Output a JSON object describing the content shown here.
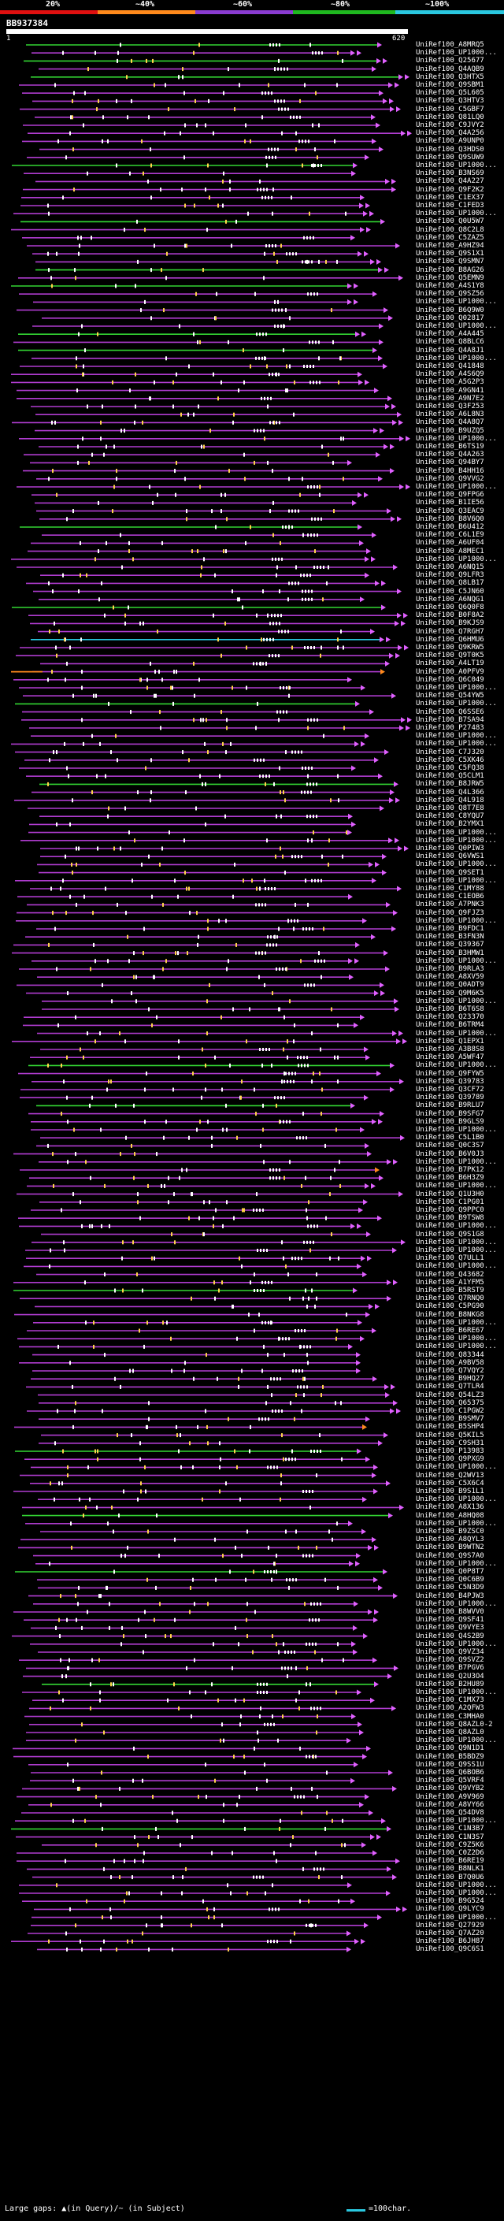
{
  "scale": {
    "labels": [
      "20%",
      "~40%",
      "~60%",
      "~80%",
      "~100%"
    ],
    "colors": [
      "#e01010",
      "#ff8a1c",
      "#8a3bd1",
      "#1fb81f",
      "#2ac8e0"
    ]
  },
  "query": {
    "id": "BB937384",
    "start": "1",
    "end": "620"
  },
  "hits": [
    "UniRef100_A8MRQ5",
    "UniRef100_UP1000...",
    "UniRef100_Q25677",
    "UniRef100_Q4AQB9",
    "UniRef100_Q3HTX5",
    "UniRef100_Q9SBM1",
    "UniRef100_Q5L605",
    "UniRef100_Q3HTV3",
    "UniRef100_C5GBF7",
    "UniRef100_Q81LQ0",
    "UniRef100_C9JVY2",
    "UniRef100_Q4A256",
    "UniRef100_A9UNP0",
    "UniRef100_Q3HDS0",
    "UniRef100_Q9SUW9",
    "UniRef100_UP1000...",
    "UniRef100_B3NS69",
    "UniRef100_Q4A227",
    "UniRef100_Q9F2K2",
    "UniRef100_C1EX37",
    "UniRef100_C1FED3",
    "UniRef100_UP1000...",
    "UniRef100_Q0U5W7",
    "UniRef100_Q8C2L8",
    "UniRef100_C5ZAZ5",
    "UniRef100_A9HZ94",
    "UniRef100_Q9S1X1",
    "UniRef100_Q9SMN7",
    "UniRef100_B8AG26",
    "UniRef100_Q5EMN9",
    "UniRef100_A4S1Y8",
    "UniRef100_Q9SZ56",
    "UniRef100_UP1000...",
    "UniRef100_B6Q9W0",
    "UniRef100_Q02817",
    "UniRef100_UP1000...",
    "UniRef100_A4A445",
    "UniRef100_Q8BLC6",
    "UniRef100_Q4A8J1",
    "UniRef100_UP1000...",
    "UniRef100_Q41848",
    "UniRef100_A4S6Q9",
    "UniRef100_A5G2P3",
    "UniRef100_A9GN41",
    "UniRef100_A9N7E2",
    "UniRef100_Q3F253",
    "UniRef100_A6L8N3",
    "UniRef100_Q4A8Q7",
    "UniRef100_B9UZQ5",
    "UniRef100_UP1000...",
    "UniRef100_B6TS19",
    "UniRef100_Q4A263",
    "UniRef100_Q94BY7",
    "UniRef100_B4HH16",
    "UniRef100_Q9VVG2",
    "UniRef100_UP1000...",
    "UniRef100_Q9FPG6",
    "UniRef100_B1IE56",
    "UniRef100_Q3EAC9",
    "UniRef100_B8V6Q0",
    "UniRef100_B6U412",
    "UniRef100_C6L1E9",
    "UniRef100_A6UF04",
    "UniRef100_A8MEC1",
    "UniRef100_UP1000...",
    "UniRef100_A6NQ15",
    "UniRef100_Q9LFR3",
    "UniRef100_Q8LB17",
    "UniRef100_C5JN60",
    "UniRef100_A6NQG1",
    "UniRef100_Q6Q0F8",
    "UniRef100_B0F8A2",
    "UniRef100_B9KJS9",
    "UniRef100_Q7RGH7",
    "UniRef100_Q6HMU6",
    "UniRef100_Q9KRW5",
    "UniRef100_Q9T0K5",
    "UniRef100_A4LT19",
    "UniRef100_A0PFV9",
    "UniRef100_Q6C049",
    "UniRef100_UP1000...",
    "UniRef100_Q54YW5",
    "UniRef100_UP1000...",
    "UniRef100_Q6SSE6",
    "UniRef100_B7SA94",
    "UniRef100_P27483",
    "UniRef100_UP1000...",
    "UniRef100_UP1000...",
    "UniRef100_C7J320",
    "UniRef100_C5XK46",
    "UniRef100_C5FQ38",
    "UniRef100_Q5CLM1",
    "UniRef100_B8JRW5",
    "UniRef100_Q4L366",
    "UniRef100_Q4L918",
    "UniRef100_Q8T7E8",
    "UniRef100_C8YQU7",
    "UniRef100_B2YMX1",
    "UniRef100_UP1000...",
    "UniRef100_UP1000...",
    "UniRef100_Q0PIW3",
    "UniRef100_Q6VWS1",
    "UniRef100_UP1000...",
    "UniRef100_Q9SET1",
    "UniRef100_UP1000...",
    "UniRef100_C1MY88",
    "UniRef100_C1EOB6",
    "UniRef100_A7PNK3",
    "UniRef100_Q9FJZ3",
    "UniRef100_UP1000...",
    "UniRef100_B9FDC1",
    "UniRef100_B3FN3N",
    "UniRef100_Q39367",
    "UniRef100_B3HMW1",
    "UniRef100_UP1000...",
    "UniRef100_B9RLA3",
    "UniRef100_A8XV59",
    "UniRef100_Q0ADT9",
    "UniRef100_Q9M6K5",
    "UniRef100_UP1000...",
    "UniRef100_B6T6S8",
    "UniRef100_Q23370",
    "UniRef100_B6TRM4",
    "UniRef100_UP1000...",
    "UniRef100_Q1EPX1",
    "UniRef100_A3B8S8",
    "UniRef100_A5WF47",
    "UniRef100_UP1000...",
    "UniRef100_Q9FYW5",
    "UniRef100_Q39783",
    "UniRef100_Q3CF72",
    "UniRef100_Q39789",
    "UniRef100_B9RLU7",
    "UniRef100_B9SFG7",
    "UniRef100_B9GLS9",
    "UniRef100_UP1000...",
    "UniRef100_C5L1B0",
    "UniRef100_Q0C3S7",
    "UniRef100_B6V0J3",
    "UniRef100_UP1000...",
    "UniRef100_B7PK12",
    "UniRef100_B6H3Z9",
    "UniRef100_UP1000...",
    "UniRef100_Q1U3H0",
    "UniRef100_C1PG01",
    "UniRef100_Q9PPC0",
    "UniRef100_B9TSW8",
    "UniRef100_UP1000...",
    "UniRef100_Q9S1G8",
    "UniRef100_UP1000...",
    "UniRef100_UP1000...",
    "UniRef100_Q7ULL1",
    "UniRef100_UP1000...",
    "UniRef100_Q43682",
    "UniRef100_A1YFM5",
    "UniRef100_B5RST9",
    "UniRef100_Q7RNQ0",
    "UniRef100_C5PG90",
    "UniRef100_B8NKG8",
    "UniRef100_UP1000...",
    "UniRef100_B6RE67",
    "UniRef100_UP1000...",
    "UniRef100_UP1000...",
    "UniRef100_Q83344",
    "UniRef100_A9BV58",
    "UniRef100_Q7VQY2",
    "UniRef100_B9HQ27",
    "UniRef100_Q7TLR4",
    "UniRef100_Q54LZ3",
    "UniRef100_Q65375",
    "UniRef100_C1PGW2",
    "UniRef100_B9SMV7",
    "UniRef100_B5SHP4",
    "UniRef100_Q5KIL5",
    "UniRef100_C9SH31",
    "UniRef100_P13983",
    "UniRef100_Q9PXG9",
    "UniRef100_UP1000...",
    "UniRef100_Q2WV13",
    "UniRef100_C5X6C4",
    "UniRef100_B9S1L1",
    "UniRef100_UP1000...",
    "UniRef100_A8X136",
    "UniRef100_A8HQ08",
    "UniRef100_UP1000...",
    "UniRef100_B9ZSC0",
    "UniRef100_A8QYL3",
    "UniRef100_B9WTN2",
    "UniRef100_Q9S7A0",
    "UniRef100_UP1000...",
    "UniRef100_Q0P8T7",
    "UniRef100_Q0C6B9",
    "UniRef100_C5N3D9",
    "UniRef100_B4PJW3",
    "UniRef100_UP1000...",
    "UniRef100_B8WVV0",
    "UniRef100_Q9SF41",
    "UniRef100_Q9VYE3",
    "UniRef100_Q4S2B9",
    "UniRef100_UP1000...",
    "UniRef100_Q9VZ34",
    "UniRef100_Q9SVZ2",
    "UniRef100_B7PGV6",
    "UniRef100_Q2U3O4",
    "UniRef100_B2HU89",
    "UniRef100_UP1000...",
    "UniRef100_C1MX73",
    "UniRef100_A2QFW3",
    "UniRef100_C3MHA0",
    "UniRef100_Q8AZL0-2",
    "UniRef100_Q8AZL0",
    "UniRef100_UP1000...",
    "UniRef100_Q9N1D1",
    "UniRef100_B5BDZ9",
    "UniRef100_Q9SS1U",
    "UniRef100_Q6BOB6",
    "UniRef100_Q5VRF4",
    "UniRef100_Q9VYB2",
    "UniRef100_A9V969",
    "UniRef100_A8VY66",
    "UniRef100_Q54DV8",
    "UniRef100_UP1000...",
    "UniRef100_C1N3B7",
    "UniRef100_C1N3S7",
    "UniRef100_C9Z5K6",
    "UniRef100_C0Z2D6",
    "UniRef100_B6RE19",
    "UniRef100_B8NLK1",
    "UniRef100_B7Q0U6",
    "UniRef100_UP1000...",
    "UniRef100_UP1000...",
    "UniRef100_B9G524",
    "UniRef100_Q9LYC9",
    "UniRef100_UP1000...",
    "UniRef100_Q27929",
    "UniRef100_Q7AZ20",
    "UniRef100_B6JH87",
    "UniRef100_Q9C6S1"
  ],
  "footer": {
    "legend_gaps": "Large gaps: ▲(in Query)/~ (in Subject)",
    "legend_scale": "=100char."
  },
  "colors": {
    "purple": "#b03cd0",
    "magenta": "#e060ff",
    "green": "#33d633",
    "cyan": "#2ac8e0",
    "orange": "#ff8a1c",
    "highlight": "#ffd34a",
    "white": "#ffffff"
  }
}
